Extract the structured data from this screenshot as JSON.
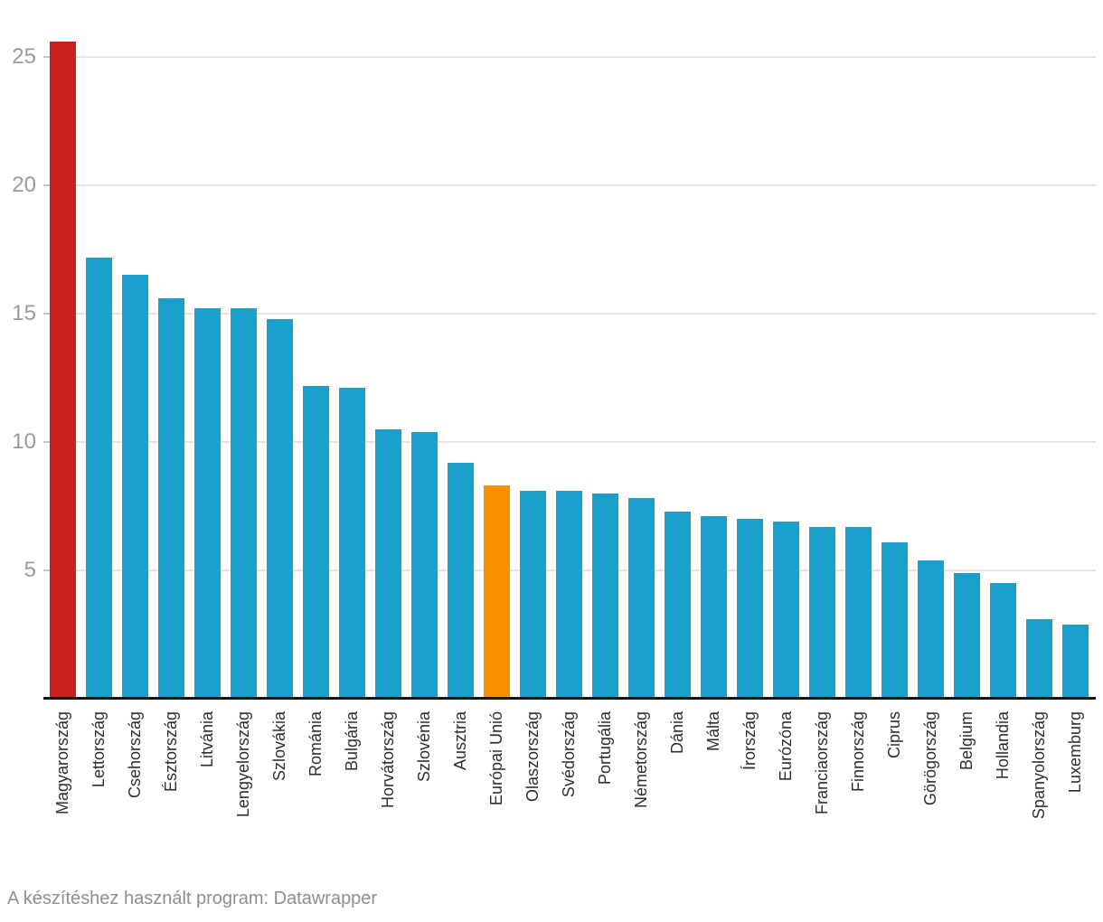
{
  "chart_data": {
    "type": "bar",
    "title": "",
    "xlabel": "",
    "ylabel": "",
    "ylim": [
      0,
      26
    ],
    "yticks": [
      5,
      10,
      15,
      20,
      25
    ],
    "grid": "horizontal",
    "legend": "none",
    "categories": [
      "Magyarország",
      "Lettország",
      "Csehország",
      "Észtország",
      "Litvánia",
      "Lengyelország",
      "Szlovákia",
      "Románia",
      "Bulgária",
      "Horvátország",
      "Szlovénia",
      "Ausztria",
      "Európai Unió",
      "Olaszország",
      "Svédország",
      "Portugália",
      "Németország",
      "Dánia",
      "Málta",
      "Írország",
      "Eurózóna",
      "Franciaország",
      "Finnország",
      "Ciprus",
      "Görögország",
      "Belgium",
      "Hollandia",
      "Spanyolország",
      "Luxemburg"
    ],
    "values": [
      25.6,
      17.2,
      16.5,
      15.6,
      15.2,
      15.2,
      14.8,
      12.2,
      12.1,
      10.5,
      10.4,
      9.2,
      8.3,
      8.1,
      8.1,
      8.0,
      7.8,
      7.3,
      7.1,
      7.0,
      6.9,
      6.7,
      6.7,
      6.1,
      5.4,
      4.9,
      4.5,
      3.1,
      2.9
    ],
    "bar_colors": [
      "#C8211E",
      "#1BA0CC",
      "#1BA0CC",
      "#1BA0CC",
      "#1BA0CC",
      "#1BA0CC",
      "#1BA0CC",
      "#1BA0CC",
      "#1BA0CC",
      "#1BA0CC",
      "#1BA0CC",
      "#1BA0CC",
      "#F89000",
      "#1BA0CC",
      "#1BA0CC",
      "#1BA0CC",
      "#1BA0CC",
      "#1BA0CC",
      "#1BA0CC",
      "#1BA0CC",
      "#1BA0CC",
      "#1BA0CC",
      "#1BA0CC",
      "#1BA0CC",
      "#1BA0CC",
      "#1BA0CC",
      "#1BA0CC",
      "#1BA0CC",
      "#1BA0CC"
    ],
    "highlights": {
      "Magyarország": "#C8211E",
      "Európai Unió": "#F89000"
    },
    "default_bar_color": "#1BA0CC"
  },
  "colors": {
    "background": "#FFFFFF",
    "bar_default": "#1BA0CC",
    "bar_highlight_red": "#C8211E",
    "bar_highlight_orange": "#F89000",
    "axis_line": "#141414",
    "gridline": "#E4E4E4",
    "tick": "#C6C6C6",
    "y_tick_label": "#9B9B9B",
    "x_tick_label": "#2E2E2E",
    "footer_text": "#8E8E8E"
  },
  "footer": {
    "credit": "A készítéshez használt program: Datawrapper"
  }
}
